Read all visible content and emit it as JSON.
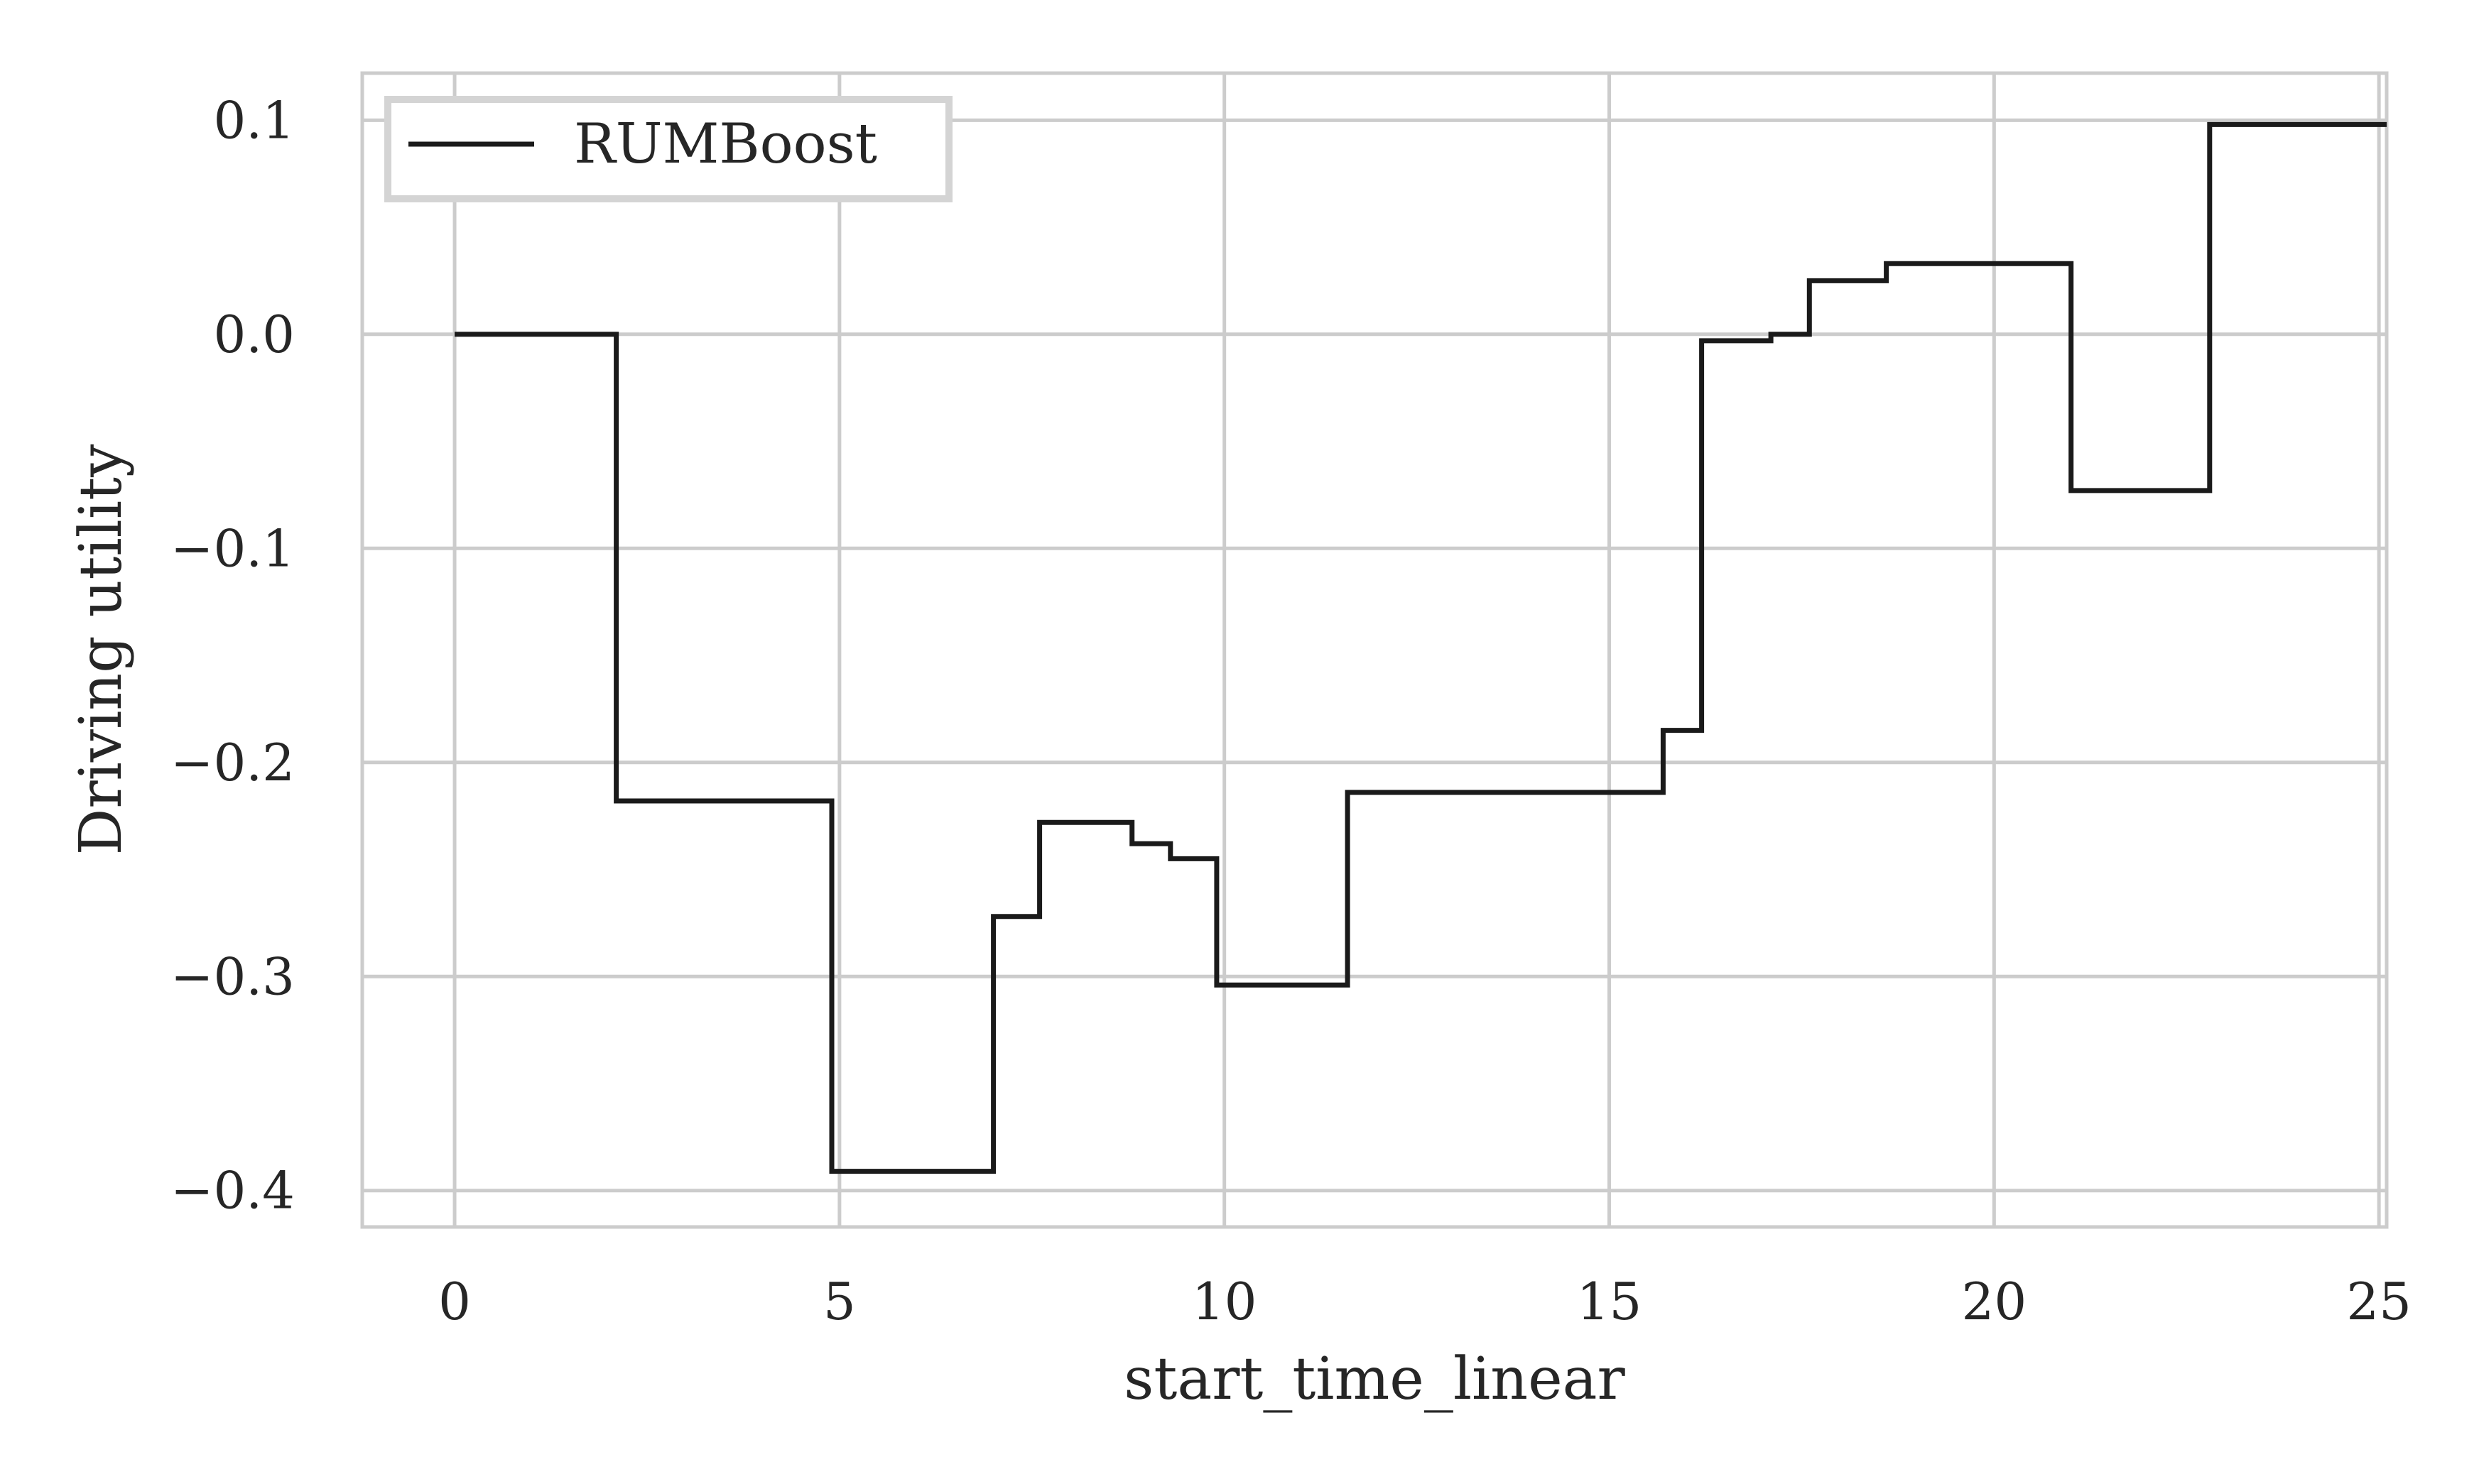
{
  "chart_data": {
    "type": "line",
    "step": "post",
    "xlabel": "start_time_linear",
    "ylabel": "Driving utility",
    "xlim": [
      -1.2,
      25.1
    ],
    "ylim": [
      -0.417,
      0.122
    ],
    "xticks": [
      0,
      5,
      10,
      15,
      20,
      25
    ],
    "yticks": [
      0.1,
      0.0,
      -0.1,
      -0.2,
      -0.3,
      -0.4
    ],
    "xtick_labels": [
      "0",
      "5",
      "10",
      "15",
      "20",
      "25"
    ],
    "ytick_labels": [
      "0.1",
      "0.0",
      "−0.1",
      "−0.2",
      "−0.3",
      "−0.4"
    ],
    "grid": true,
    "legend_position": "top-left",
    "colors": {
      "line": "#1a1a1a",
      "grid": "#cccccc",
      "spine": "#cccccc",
      "legend_border": "#d4d4d4",
      "text": "#262626"
    },
    "series": [
      {
        "name": "RUMBoost",
        "x": [
          0,
          2.1,
          4.9,
          7.0,
          7.6,
          8.8,
          9.3,
          9.9,
          11.6,
          15.7,
          16.2,
          17.1,
          17.6,
          18.6,
          21.0,
          22.8,
          25.1
        ],
        "y": [
          0.0,
          -0.218,
          -0.391,
          -0.272,
          -0.228,
          -0.238,
          -0.245,
          -0.304,
          -0.214,
          -0.185,
          -0.003,
          0.0,
          0.025,
          0.033,
          -0.073,
          0.098,
          0.098
        ]
      }
    ]
  }
}
